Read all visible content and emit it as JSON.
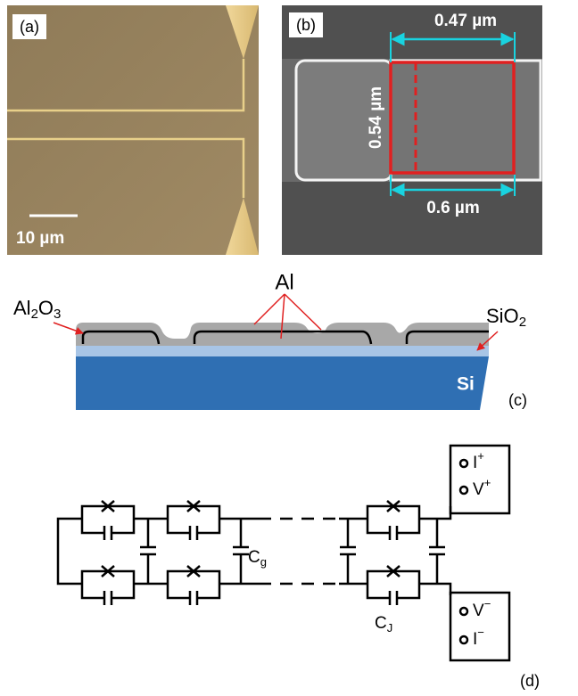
{
  "panels": {
    "a": {
      "label": "(a)",
      "scale_bar": "10 µm"
    },
    "b": {
      "label": "(b)",
      "width_top": "0.47 µm",
      "height": "0.54 µm",
      "width_bottom": "0.6 µm"
    },
    "c": {
      "label": "(c)",
      "al2o3": {
        "a": "Al",
        "b": "2",
        "c": "O",
        "d": "3"
      },
      "al": "Al",
      "sio2": {
        "a": "SiO",
        "b": "2"
      },
      "si": "Si"
    },
    "d": {
      "label": "(d)",
      "cg": {
        "base": "C",
        "sub": "g"
      },
      "cj": {
        "base": "C",
        "sub": "J"
      },
      "i_plus": {
        "base": "I",
        "sup": "+"
      },
      "v_plus": {
        "base": "V",
        "sup": "+"
      },
      "v_minus": {
        "base": "V",
        "sup": "−"
      },
      "i_minus": {
        "base": "I",
        "sup": "−"
      }
    }
  }
}
